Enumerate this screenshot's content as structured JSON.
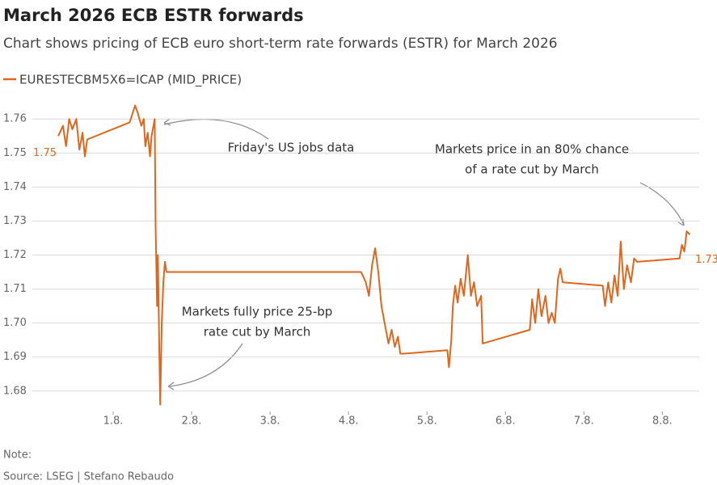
{
  "chart_data": {
    "type": "line",
    "title": "March 2026 ECB ESTR forwards",
    "subtitle": "Chart shows pricing of ECB euro short-term rate forwards (ESTR) for March 2026",
    "note": "Note:",
    "source": "Source: LSEG | Stefano Rebaudo",
    "x": [
      0.3,
      0.36,
      0.4,
      0.44,
      0.48,
      0.53,
      0.57,
      0.61,
      0.64,
      0.67,
      1.21,
      1.28,
      1.31,
      1.36,
      1.39,
      1.41,
      1.44,
      1.47,
      1.49,
      1.53,
      1.54,
      1.56,
      1.57,
      1.59,
      1.6,
      1.62,
      1.64,
      1.66,
      1.68,
      4.16,
      4.22,
      4.26,
      4.3,
      4.34,
      4.38,
      4.42,
      4.46,
      4.51,
      4.55,
      4.59,
      4.63,
      4.66,
      4.71,
      5.26,
      5.28,
      5.31,
      5.33,
      5.36,
      5.39,
      5.43,
      5.47,
      5.52,
      5.56,
      5.6,
      5.64,
      5.69,
      5.71,
      6.31,
      6.34,
      6.38,
      6.42,
      6.46,
      6.51,
      6.55,
      6.59,
      6.63,
      6.67,
      6.7,
      6.73,
      7.24,
      7.27,
      7.31,
      7.35,
      7.39,
      7.43,
      7.47,
      7.51,
      7.55,
      7.6,
      7.64,
      7.68,
      8.22,
      8.25,
      8.28,
      8.31,
      8.35
    ],
    "series": [
      {
        "name": "EURESTECBM5X6=ICAP (MID_PRICE)",
        "color": "#e0661d",
        "values": [
          1.755,
          1.758,
          1.752,
          1.76,
          1.757,
          1.76,
          1.751,
          1.756,
          1.749,
          1.754,
          1.759,
          1.764,
          1.762,
          1.758,
          1.76,
          1.752,
          1.756,
          1.749,
          1.755,
          1.76,
          1.73,
          1.705,
          1.72,
          1.69,
          1.676,
          1.7,
          1.712,
          1.718,
          1.715,
          1.715,
          1.712,
          1.708,
          1.717,
          1.722,
          1.715,
          1.705,
          1.7,
          1.694,
          1.698,
          1.693,
          1.696,
          1.691,
          1.691,
          1.692,
          1.687,
          1.695,
          1.705,
          1.711,
          1.706,
          1.713,
          1.708,
          1.72,
          1.708,
          1.712,
          1.705,
          1.708,
          1.694,
          1.698,
          1.707,
          1.7,
          1.71,
          1.702,
          1.708,
          1.7,
          1.703,
          1.7,
          1.713,
          1.716,
          1.712,
          1.711,
          1.705,
          1.712,
          1.706,
          1.714,
          1.708,
          1.724,
          1.71,
          1.717,
          1.712,
          1.719,
          1.718,
          1.719,
          1.723,
          1.721,
          1.727,
          1.726
        ]
      }
    ],
    "endpoint_labels": [
      1.75,
      1.73
    ],
    "annotations": [
      [
        "Friday's US jobs data"
      ],
      [
        "Markets fully price 25-bp",
        "rate cut by March"
      ],
      [
        "Markets price in an 80% chance",
        "of a rate cut by March"
      ]
    ],
    "xlim": [
      -0.03,
      8.47
    ],
    "xticks": [
      {
        "value": 1,
        "label": "1.8."
      },
      {
        "value": 2,
        "label": "2.8."
      },
      {
        "value": 3,
        "label": "3.8."
      },
      {
        "value": 4,
        "label": "4.8."
      },
      {
        "value": 5,
        "label": "5.8."
      },
      {
        "value": 6,
        "label": "6.8."
      },
      {
        "value": 7,
        "label": "7.8."
      },
      {
        "value": 8,
        "label": "8.8."
      }
    ],
    "ylim": [
      1.674,
      1.766
    ],
    "yticks": [
      1.68,
      1.69,
      {
        "value": 1.7,
        "label": "1.70"
      },
      1.71,
      1.72,
      1.73,
      1.74,
      1.75,
      1.76
    ],
    "grid": true
  }
}
